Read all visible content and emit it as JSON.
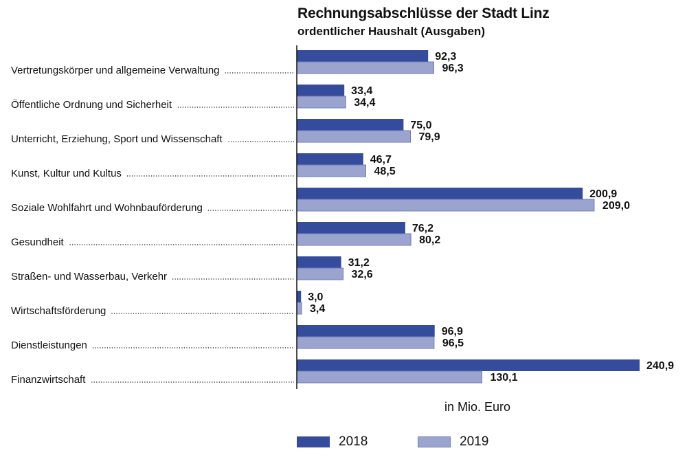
{
  "chart_data": {
    "type": "bar",
    "orientation": "horizontal",
    "title": "Rechnungsabschlüsse der Stadt Linz",
    "subtitle": "ordentlicher Haushalt (Ausgaben)",
    "xlabel": "in Mio. Euro",
    "ylabel": "",
    "xlim": [
      0,
      240.9
    ],
    "grid": false,
    "legend_position": "bottom",
    "categories": [
      "Vertretungskörper und allgemeine Verwaltung",
      "Öffentliche Ordnung und Sicherheit",
      "Unterricht, Erziehung, Sport und Wissenschaft",
      "Kunst, Kultur und Kultus",
      "Soziale Wohlfahrt und Wohnbauförderung",
      "Gesundheit",
      "Straßen- und Wasserbau, Verkehr",
      "Wirtschaftsförderung",
      "Dienstleistungen",
      "Finanzwirtschaft"
    ],
    "series": [
      {
        "name": "2018",
        "color": "#354b9b",
        "values": [
          92.3,
          33.4,
          75.0,
          46.7,
          200.9,
          76.2,
          31.2,
          3.0,
          96.9,
          240.9
        ],
        "labels": [
          "92,3",
          "33,4",
          "75,0",
          "46,7",
          "200,9",
          "76,2",
          "31,2",
          "3,0",
          "96,9",
          "240,9"
        ]
      },
      {
        "name": "2019",
        "color": "#9aa4cf",
        "values": [
          96.3,
          34.4,
          79.9,
          48.5,
          209.0,
          80.2,
          32.6,
          3.4,
          96.5,
          130.1
        ],
        "labels": [
          "96,3",
          "34,4",
          "79,9",
          "48,5",
          "209,0",
          "80,2",
          "32,6",
          "3,4",
          "96,5",
          "130,1"
        ]
      }
    ]
  },
  "legend": {
    "items": [
      {
        "label": "2018",
        "color": "#354b9b"
      },
      {
        "label": "2019",
        "color": "#9aa4cf"
      }
    ]
  }
}
